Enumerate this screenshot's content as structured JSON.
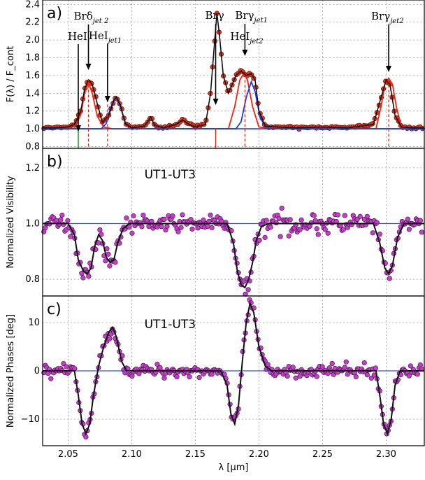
{
  "chart_data": [
    {
      "type": "line",
      "panel_label": "a)",
      "ylabel": "F(λ) / F_cont",
      "xlim": [
        2.03,
        2.33
      ],
      "ylim": [
        0.78,
        2.45
      ],
      "yticks": [
        "0.8",
        "1.0",
        "1.2",
        "1.4",
        "1.6",
        "1.8",
        "2.0",
        "2.2",
        "2.4"
      ],
      "grid": true,
      "series": [
        {
          "values": [
            [
              2.03,
              1.01
            ],
            [
              2.04,
              1.01
            ],
            [
              2.05,
              1.02
            ],
            [
              2.055,
              1.05
            ],
            [
              2.06,
              1.2
            ],
            [
              2.063,
              1.45
            ],
            [
              2.066,
              1.55
            ],
            [
              2.069,
              1.5
            ],
            [
              2.073,
              1.28
            ],
            [
              2.077,
              1.07
            ],
            [
              2.082,
              1.15
            ],
            [
              2.086,
              1.32
            ],
            [
              2.088,
              1.36
            ],
            [
              2.091,
              1.27
            ],
            [
              2.095,
              1.06
            ],
            [
              2.1,
              1.01
            ],
            [
              2.11,
              1.03
            ],
            [
              2.115,
              1.13
            ],
            [
              2.118,
              1.04
            ],
            [
              2.125,
              1.01
            ],
            [
              2.135,
              1.05
            ],
            [
              2.14,
              1.1
            ],
            [
              2.145,
              1.05
            ],
            [
              2.15,
              1.02
            ],
            [
              2.158,
              1.05
            ],
            [
              2.162,
              1.4
            ],
            [
              2.165,
              1.95
            ],
            [
              2.167,
              2.3
            ],
            [
              2.169,
              2.05
            ],
            [
              2.172,
              1.6
            ],
            [
              2.176,
              1.4
            ],
            [
              2.182,
              1.6
            ],
            [
              2.186,
              1.65
            ],
            [
              2.19,
              1.6
            ],
            [
              2.194,
              1.62
            ],
            [
              2.197,
              1.55
            ],
            [
              2.2,
              1.2
            ],
            [
              2.205,
              1.03
            ],
            [
              2.215,
              1.02
            ],
            [
              2.23,
              1.01
            ],
            [
              2.25,
              1.02
            ],
            [
              2.27,
              1.01
            ],
            [
              2.29,
              1.05
            ],
            [
              2.296,
              1.35
            ],
            [
              2.3,
              1.55
            ],
            [
              2.303,
              1.5
            ],
            [
              2.307,
              1.15
            ],
            [
              2.312,
              1.02
            ],
            [
              2.32,
              1.01
            ],
            [
              2.33,
              1.01
            ]
          ]
        },
        {
          "values": [
            [
              2.03,
              1.0
            ],
            [
              2.055,
              1.0
            ],
            [
              2.06,
              1.16
            ],
            [
              2.063,
              1.4
            ],
            [
              2.066,
              1.52
            ],
            [
              2.069,
              1.4
            ],
            [
              2.073,
              1.14
            ],
            [
              2.078,
              1.02
            ],
            [
              2.085,
              1.0
            ],
            [
              2.176,
              1.0
            ],
            [
              2.181,
              1.25
            ],
            [
              2.185,
              1.55
            ],
            [
              2.188,
              1.62
            ],
            [
              2.191,
              1.55
            ],
            [
              2.195,
              1.25
            ],
            [
              2.2,
              1.02
            ],
            [
              2.21,
              1.0
            ],
            [
              2.292,
              1.0
            ],
            [
              2.296,
              1.25
            ],
            [
              2.299,
              1.5
            ],
            [
              2.302,
              1.57
            ],
            [
              2.305,
              1.5
            ],
            [
              2.308,
              1.25
            ],
            [
              2.312,
              1.02
            ],
            [
              2.33,
              1.0
            ]
          ]
        },
        {
          "values": [
            [
              2.03,
              1.0
            ],
            [
              2.076,
              1.0
            ],
            [
              2.08,
              1.06
            ],
            [
              2.083,
              1.22
            ],
            [
              2.086,
              1.33
            ],
            [
              2.088,
              1.35
            ],
            [
              2.091,
              1.25
            ],
            [
              2.095,
              1.07
            ],
            [
              2.1,
              1.0
            ],
            [
              2.182,
              1.0
            ],
            [
              2.186,
              1.08
            ],
            [
              2.19,
              1.35
            ],
            [
              2.194,
              1.53
            ],
            [
              2.197,
              1.42
            ],
            [
              2.201,
              1.12
            ],
            [
              2.206,
              1.01
            ],
            [
              2.21,
              1.0
            ],
            [
              2.33,
              1.0
            ]
          ]
        },
        {
          "values": [
            [
              2.03,
              1.0
            ],
            [
              2.33,
              1.0
            ]
          ]
        }
      ],
      "line_markers": [
        {
          "name": "HeI",
          "x": 2.058
        },
        {
          "name": "Brδ",
          "sub": "jet 2",
          "x": 2.066
        },
        {
          "name": "HeI",
          "sub": "jet1",
          "x": 2.081
        },
        {
          "name": "Brγ",
          "x": 2.166
        },
        {
          "name": "Brγ",
          "sub": "jet1",
          "x": 2.189
        },
        {
          "name": "HeI",
          "sub": "jet2",
          "x": 2.189
        },
        {
          "name": "Brγ",
          "sub": "jet2",
          "x": 2.302
        }
      ]
    },
    {
      "type": "scatter",
      "panel_label": "b)",
      "baseline": "UT1-UT3",
      "ylabel": "Normalized Visibility",
      "xlim": [
        2.03,
        2.33
      ],
      "ylim": [
        0.74,
        1.27
      ],
      "yticks": [
        "0.8",
        "1.0",
        "1.2"
      ],
      "grid": true,
      "series": [
        {
          "values": [
            [
              2.03,
              1.0
            ],
            [
              2.05,
              1.0
            ],
            [
              2.055,
              0.96
            ],
            [
              2.058,
              0.87
            ],
            [
              2.062,
              0.83
            ],
            [
              2.065,
              0.82
            ],
            [
              2.068,
              0.84
            ],
            [
              2.071,
              0.92
            ],
            [
              2.074,
              0.96
            ],
            [
              2.077,
              0.94
            ],
            [
              2.08,
              0.88
            ],
            [
              2.083,
              0.86
            ],
            [
              2.086,
              0.87
            ],
            [
              2.089,
              0.93
            ],
            [
              2.093,
              0.98
            ],
            [
              2.098,
              1.0
            ],
            [
              2.175,
              1.0
            ],
            [
              2.18,
              0.93
            ],
            [
              2.183,
              0.83
            ],
            [
              2.186,
              0.78
            ],
            [
              2.189,
              0.77
            ],
            [
              2.192,
              0.8
            ],
            [
              2.195,
              0.86
            ],
            [
              2.198,
              0.94
            ],
            [
              2.202,
              0.99
            ],
            [
              2.208,
              1.0
            ],
            [
              2.29,
              1.0
            ],
            [
              2.295,
              0.93
            ],
            [
              2.299,
              0.84
            ],
            [
              2.302,
              0.82
            ],
            [
              2.305,
              0.85
            ],
            [
              2.309,
              0.95
            ],
            [
              2.314,
              1.0
            ],
            [
              2.33,
              1.0
            ]
          ]
        },
        {
          "values": [
            [
              2.03,
              1.0
            ],
            [
              2.33,
              1.0
            ]
          ]
        }
      ]
    },
    {
      "type": "scatter",
      "panel_label": "c)",
      "baseline": "UT1-UT3",
      "ylabel": "Normalized Phases [deg]",
      "xlabel": "λ [μm]",
      "xlim": [
        2.03,
        2.33
      ],
      "xticks": [
        "2.05",
        "2.10",
        "2.15",
        "2.20",
        "2.25",
        "2.30"
      ],
      "ylim": [
        -15.5,
        15.5
      ],
      "yticks": [
        "−10",
        "0",
        "10"
      ],
      "grid": true,
      "series": [
        {
          "values": [
            [
              2.03,
              0
            ],
            [
              2.055,
              0
            ],
            [
              2.058,
              -5
            ],
            [
              2.061,
              -11
            ],
            [
              2.064,
              -13
            ],
            [
              2.067,
              -11
            ],
            [
              2.07,
              -5
            ],
            [
              2.074,
              1
            ],
            [
              2.078,
              5
            ],
            [
              2.082,
              8
            ],
            [
              2.085,
              9
            ],
            [
              2.088,
              7
            ],
            [
              2.092,
              2
            ],
            [
              2.096,
              0
            ],
            [
              2.17,
              0
            ],
            [
              2.175,
              -3
            ],
            [
              2.178,
              -9
            ],
            [
              2.181,
              -11
            ],
            [
              2.184,
              -7
            ],
            [
              2.187,
              2
            ],
            [
              2.19,
              10
            ],
            [
              2.193,
              14
            ],
            [
              2.196,
              12
            ],
            [
              2.2,
              5
            ],
            [
              2.205,
              1
            ],
            [
              2.21,
              0
            ],
            [
              2.292,
              0
            ],
            [
              2.295,
              -5
            ],
            [
              2.298,
              -11
            ],
            [
              2.301,
              -13
            ],
            [
              2.304,
              -10
            ],
            [
              2.307,
              -3
            ],
            [
              2.311,
              0
            ],
            [
              2.33,
              0
            ]
          ]
        },
        {
          "values": [
            [
              2.03,
              0
            ],
            [
              2.33,
              0
            ]
          ]
        }
      ]
    }
  ]
}
